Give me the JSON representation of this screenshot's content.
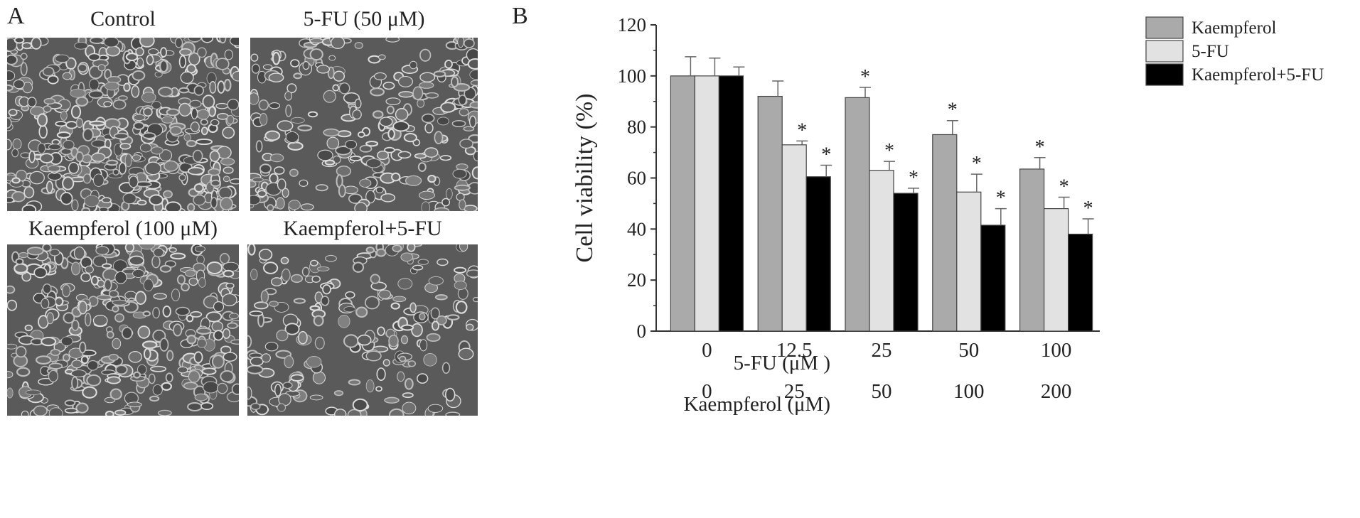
{
  "panels": {
    "a_letter": "A",
    "b_letter": "B",
    "images": [
      {
        "title": "Control",
        "density": "confluent"
      },
      {
        "title": "5-FU (50 μM)",
        "density": "scattered"
      },
      {
        "title": "Kaempferol (100 μM)",
        "density": "dense"
      },
      {
        "title": "Kaempferol+5-FU",
        "density": "sparse"
      }
    ]
  },
  "chart_data": {
    "type": "bar",
    "ylabel": "Cell viability (%)",
    "ylim": [
      0,
      120
    ],
    "yticks": [
      0,
      20,
      40,
      60,
      80,
      100,
      120
    ],
    "row_labels": [
      "5-FU (μM )",
      "Kaempferol (μM)"
    ],
    "categories_5fu": [
      "0",
      "12.5",
      "25",
      "50",
      "100"
    ],
    "categories_kaempferol": [
      "0",
      "25",
      "50",
      "100",
      "200"
    ],
    "significance_marker": "*",
    "legend_position": "top-right",
    "series": [
      {
        "name": "Kaempferol",
        "color": "#aaaaaa",
        "values": [
          100,
          92,
          91.5,
          77,
          63.5
        ],
        "errors": [
          7.5,
          6,
          4,
          5.5,
          4.5
        ],
        "significant": [
          false,
          false,
          true,
          true,
          true
        ]
      },
      {
        "name": "5-FU",
        "color": "#e2e2e2",
        "values": [
          100,
          73,
          63,
          54.5,
          48
        ],
        "errors": [
          7,
          1.5,
          3.5,
          7,
          4.5
        ],
        "significant": [
          false,
          true,
          true,
          true,
          true
        ]
      },
      {
        "name": "Kaempferol+5-FU",
        "color": "#000000",
        "values": [
          100,
          60.5,
          54,
          41.5,
          38
        ],
        "errors": [
          3.5,
          4.5,
          2,
          6.5,
          6
        ],
        "significant": [
          false,
          true,
          true,
          true,
          true
        ]
      }
    ]
  }
}
